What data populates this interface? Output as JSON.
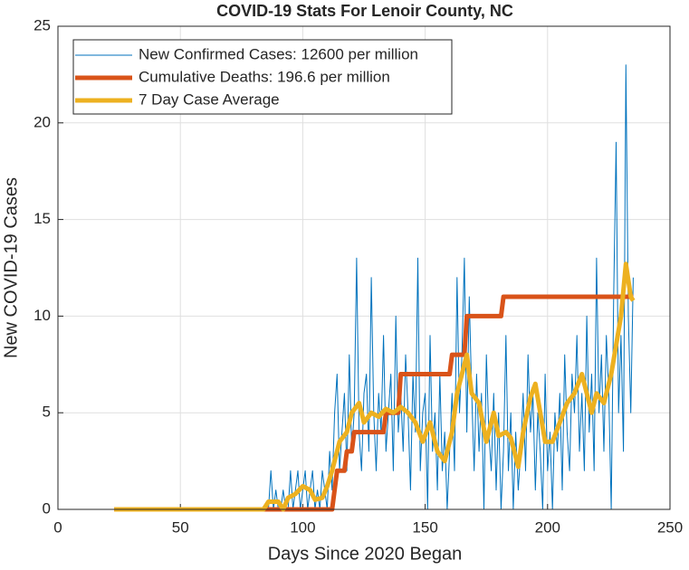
{
  "chart_data": {
    "type": "line",
    "title": "COVID-19 Stats For Lenoir County, NC",
    "xlabel": "Days Since 2020 Began",
    "ylabel": "New COVID-19 Cases",
    "xlim": [
      0,
      250
    ],
    "xticks": [
      0,
      50,
      100,
      150,
      200,
      250
    ],
    "ylim": [
      0,
      25
    ],
    "yticks": [
      0,
      5,
      10,
      15,
      20,
      25
    ],
    "grid": true,
    "legend": "upper left",
    "series": [
      {
        "name": "New Confirmed Cases: 12600 per million",
        "color": "#0072bd",
        "width": 1,
        "x": [
          23,
          84,
          85,
          86,
          87,
          88,
          89,
          90,
          91,
          92,
          93,
          94,
          95,
          96,
          97,
          98,
          99,
          100,
          101,
          102,
          103,
          104,
          105,
          106,
          107,
          108,
          109,
          110,
          111,
          112,
          113,
          114,
          115,
          116,
          117,
          118,
          119,
          120,
          121,
          122,
          123,
          124,
          125,
          126,
          127,
          128,
          129,
          130,
          131,
          132,
          133,
          134,
          135,
          136,
          137,
          138,
          139,
          140,
          141,
          142,
          143,
          144,
          145,
          146,
          147,
          148,
          149,
          150,
          151,
          152,
          153,
          154,
          155,
          156,
          157,
          158,
          159,
          160,
          161,
          162,
          163,
          164,
          165,
          166,
          167,
          168,
          169,
          170,
          171,
          172,
          173,
          174,
          175,
          176,
          177,
          178,
          179,
          180,
          181,
          182,
          183,
          184,
          185,
          186,
          187,
          188,
          189,
          190,
          191,
          192,
          193,
          194,
          195,
          196,
          197,
          198,
          199,
          200,
          201,
          202,
          203,
          204,
          205,
          206,
          207,
          208,
          209,
          210,
          211,
          212,
          213,
          214,
          215,
          216,
          217,
          218,
          219,
          220,
          221,
          222,
          223,
          224,
          225,
          226,
          227,
          228,
          229,
          230,
          231,
          232,
          233,
          234,
          235
        ],
        "values": [
          0,
          0,
          0,
          0,
          2,
          0,
          1,
          0,
          0,
          1,
          0,
          0,
          2,
          0,
          1,
          2,
          0,
          1,
          2,
          0,
          1,
          2,
          0,
          1,
          0,
          2,
          1,
          0,
          3,
          1,
          5,
          7,
          2,
          4,
          6,
          2,
          8,
          3,
          5,
          13,
          4,
          2,
          6,
          7,
          3,
          12,
          5,
          2,
          6,
          4,
          9,
          3,
          5,
          7,
          2,
          10,
          4,
          6,
          3,
          8,
          5,
          1,
          7,
          4,
          13,
          2,
          5,
          6,
          0,
          9,
          3,
          5,
          1,
          7,
          2,
          4,
          0,
          3,
          6,
          2,
          12,
          5,
          8,
          13,
          4,
          11,
          6,
          2,
          7,
          3,
          6,
          0,
          8,
          4,
          2,
          6,
          1,
          5,
          0,
          3,
          9,
          2,
          5,
          0,
          4,
          1,
          3,
          6,
          2,
          8,
          4,
          6,
          1,
          5,
          3,
          0,
          7,
          2,
          4,
          0,
          5,
          3,
          6,
          1,
          8,
          4,
          2,
          7,
          5,
          9,
          3,
          6,
          2,
          10,
          4,
          7,
          2,
          13,
          5,
          8,
          3,
          9,
          6,
          0,
          11,
          19,
          5,
          9,
          3,
          23,
          10,
          5,
          12
        ]
      },
      {
        "name": "Cumulative Deaths: 196.6 per million",
        "color": "#d95319",
        "width": 5,
        "x": [
          23,
          112,
          114,
          117,
          118,
          120,
          121,
          133,
          134,
          139,
          140,
          160,
          161,
          166,
          167,
          181,
          182,
          235
        ],
        "values": [
          0,
          0,
          2,
          2,
          3,
          3,
          4,
          4,
          5,
          5,
          7,
          7,
          8,
          8,
          10,
          10,
          11,
          11
        ]
      },
      {
        "name": "7 Day Case Average",
        "color": "#edb120",
        "width": 5,
        "x": [
          23,
          84,
          86,
          90,
          92,
          94,
          97,
          100,
          103,
          105,
          108,
          110,
          112,
          115,
          118,
          120,
          123,
          125,
          128,
          131,
          134,
          137,
          140,
          143,
          146,
          149,
          152,
          155,
          158,
          161,
          163,
          165,
          167,
          169,
          172,
          175,
          178,
          180,
          183,
          185,
          188,
          190,
          193,
          195,
          197,
          199,
          202,
          205,
          208,
          211,
          214,
          216,
          218,
          220,
          223,
          226,
          228,
          230,
          232,
          234,
          235
        ],
        "values": [
          0,
          0,
          0.4,
          0.4,
          0,
          0.6,
          0.8,
          1.2,
          1,
          0.5,
          0.6,
          1.2,
          2,
          3.5,
          4,
          5,
          5.5,
          4.5,
          5,
          4.8,
          5.2,
          5,
          5.3,
          5,
          4.5,
          3.5,
          4.5,
          3,
          2.5,
          4,
          6,
          7,
          8,
          6,
          5.5,
          3.5,
          5,
          3.8,
          4,
          3.7,
          2.2,
          4,
          5.8,
          6.5,
          5,
          3.5,
          3.5,
          4.5,
          5.5,
          6,
          7,
          6,
          5,
          6,
          5.5,
          7,
          8.5,
          10,
          12.7,
          11,
          10.8
        ]
      }
    ]
  }
}
